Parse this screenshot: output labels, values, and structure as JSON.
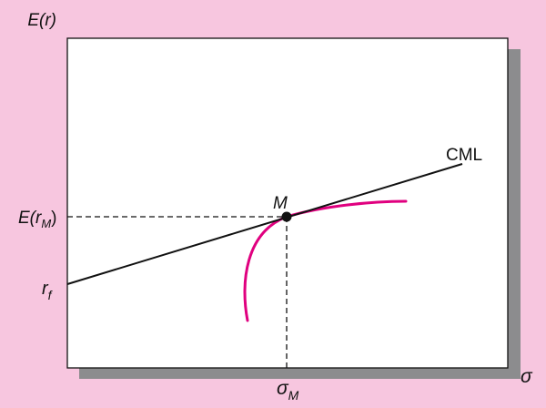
{
  "figure": {
    "y_axis_label": {
      "main": "E(r)"
    },
    "x_axis_label": {
      "main": "σ"
    },
    "rf_label": {
      "main": "r",
      "sub": "f"
    },
    "expected_return_market_label": {
      "main": "E(r",
      "sub": "M",
      "close": ")"
    },
    "sigma_market_label": {
      "main": "σ",
      "sub": "M"
    },
    "market_point_label": "M",
    "cml_label": "CML"
  },
  "colors": {
    "background": "#f7c6df",
    "plot_area": "#ffffff",
    "shadow": "#8c8c8e",
    "frontier": "#e0007f",
    "line": "#111111"
  }
}
